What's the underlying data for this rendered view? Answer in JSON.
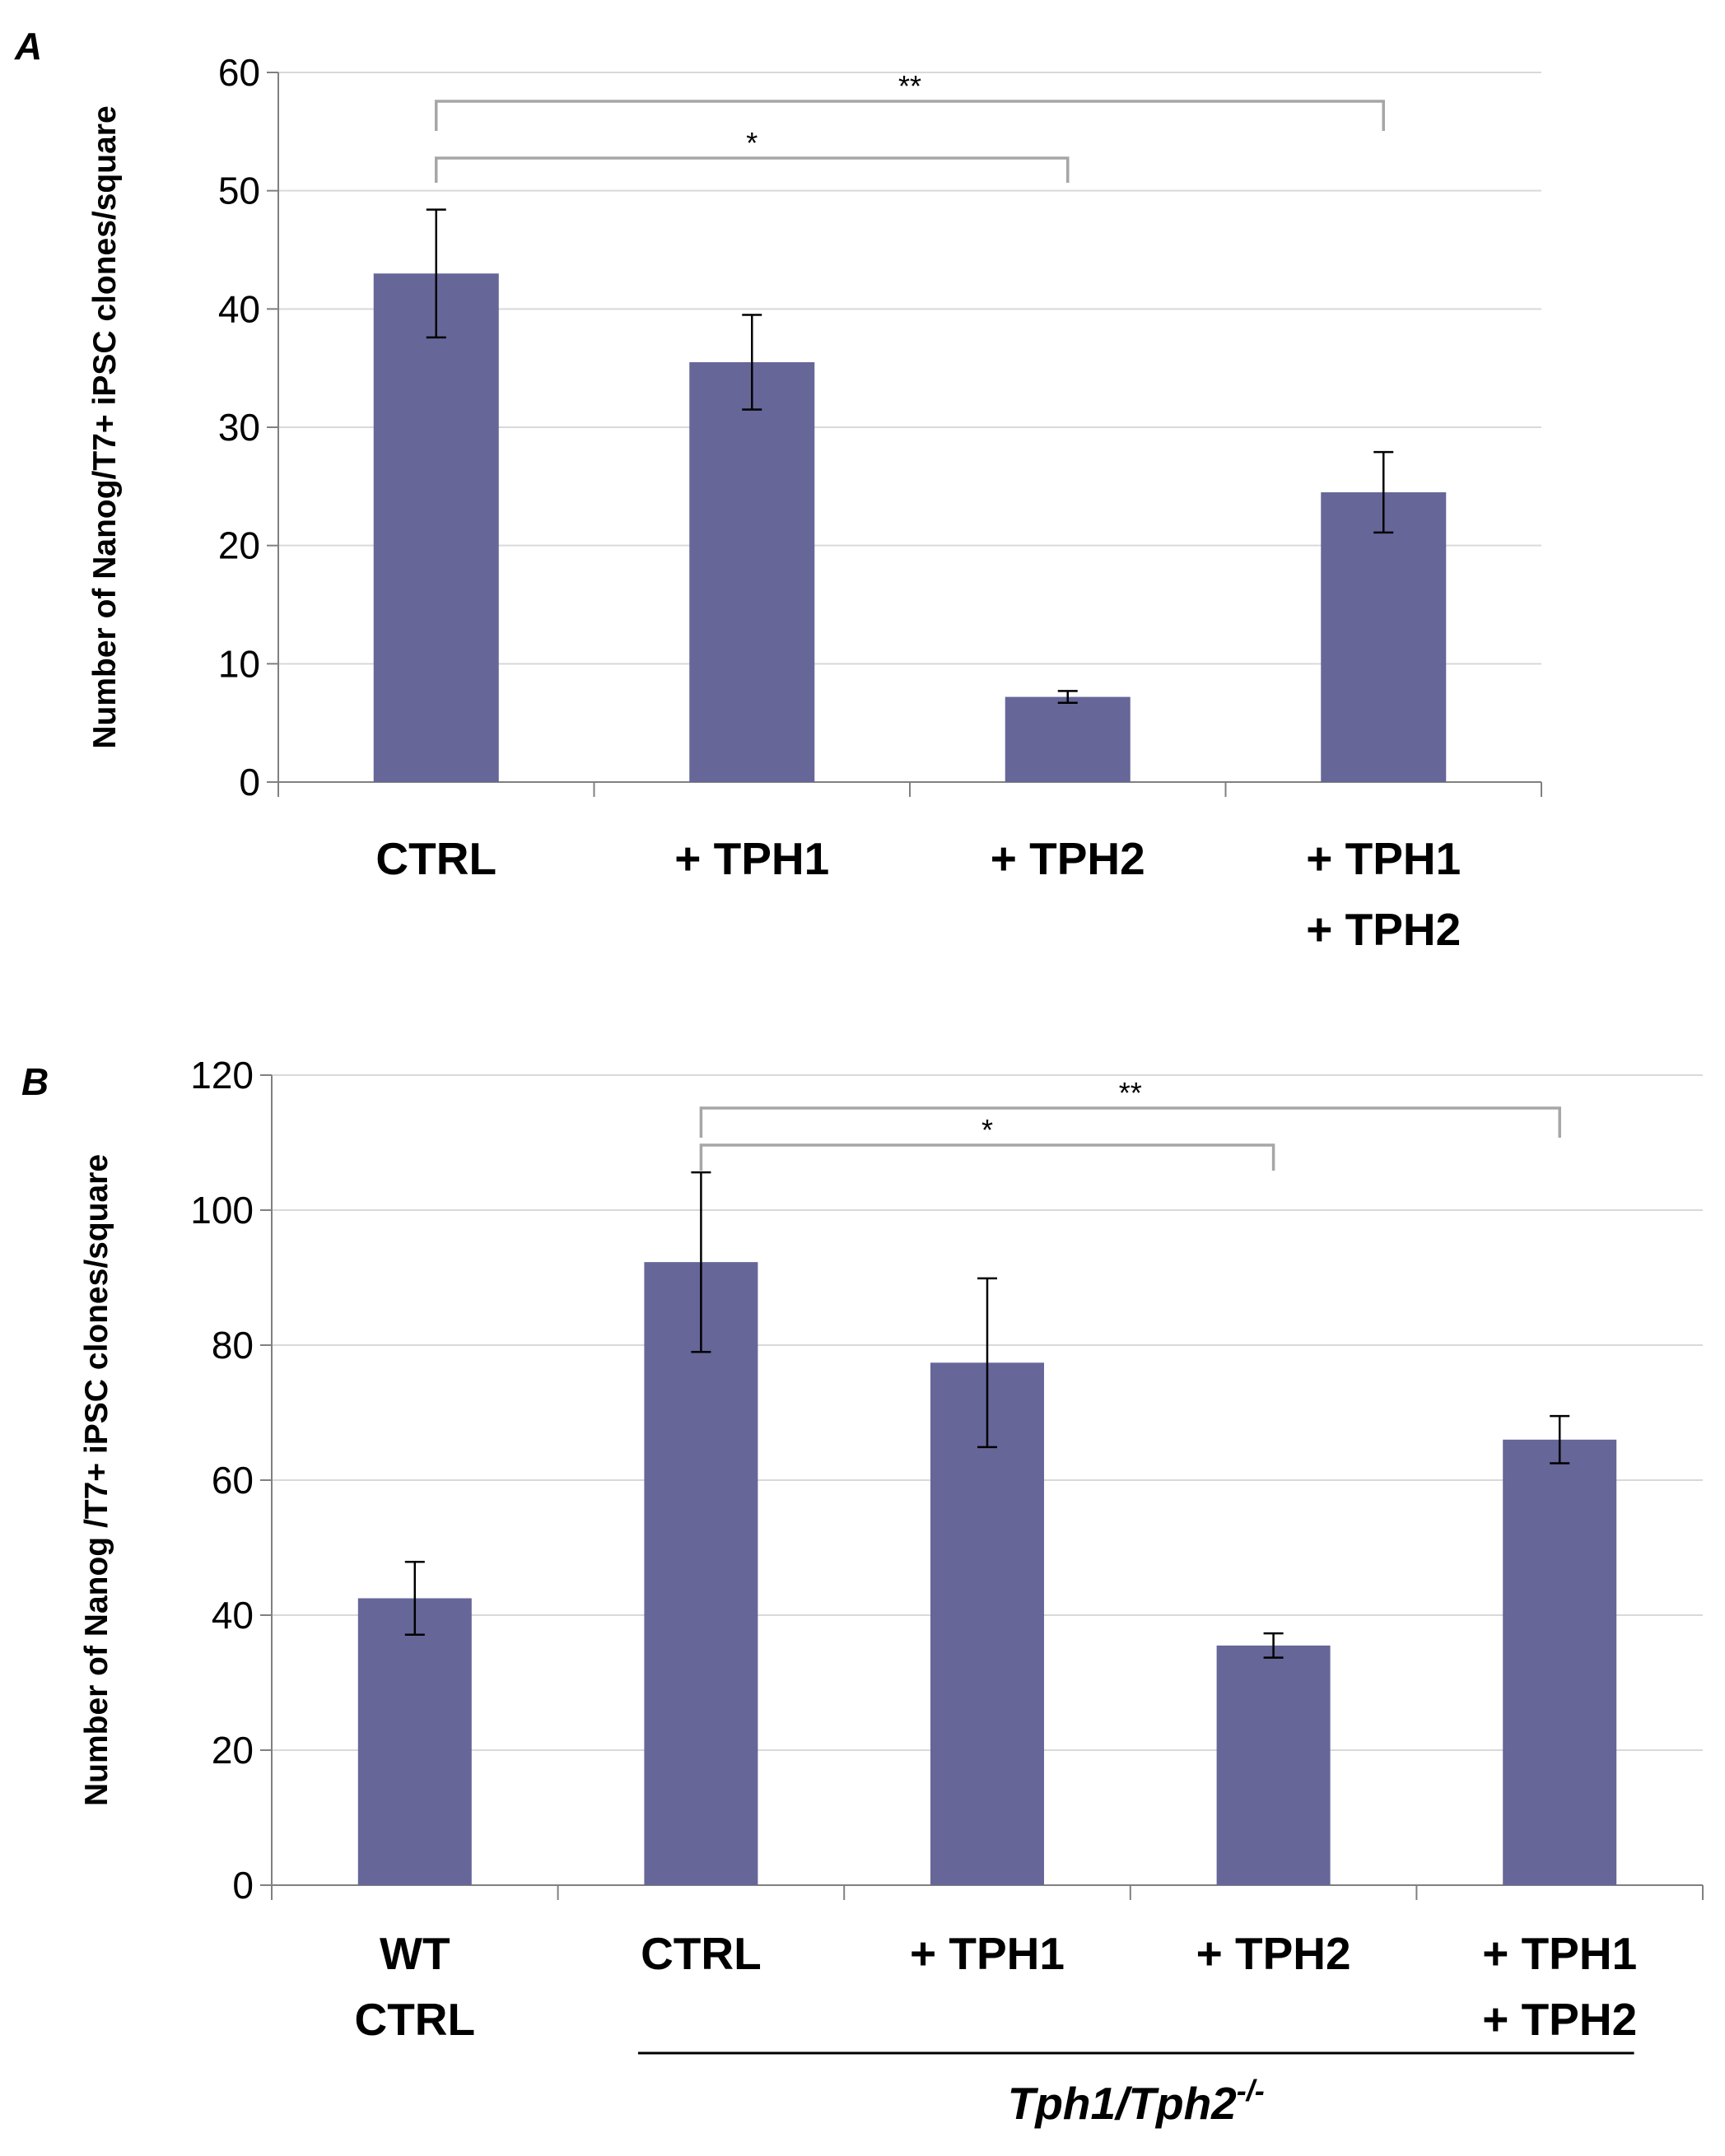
{
  "chart_data": [
    {
      "panel": "A",
      "type": "bar",
      "ylabel": "Number of  Nanog/T7+ iPSC clones/square",
      "ylim": [
        0,
        60
      ],
      "yticks": [
        0,
        10,
        20,
        30,
        40,
        50,
        60
      ],
      "grid": true,
      "categories": [
        [
          "CTRL"
        ],
        [
          "+ TPH1"
        ],
        [
          "+ TPH2"
        ],
        [
          "+ TPH1",
          "+ TPH2"
        ]
      ],
      "values": [
        43,
        35.5,
        7.2,
        24.5
      ],
      "errors": [
        5.4,
        4.0,
        0.5,
        3.4
      ],
      "bar_color": "#666699",
      "significance": [
        {
          "from": 0,
          "to": 2,
          "label": "*"
        },
        {
          "from": 0,
          "to": 3,
          "label": "**"
        }
      ]
    },
    {
      "panel": "B",
      "type": "bar",
      "ylabel": "Number of Nanog /T7+ iPSC clones/square",
      "ylim": [
        0,
        120
      ],
      "yticks": [
        0,
        20,
        40,
        60,
        80,
        100,
        120
      ],
      "grid": true,
      "categories": [
        [
          "WT",
          "CTRL"
        ],
        [
          "CTRL"
        ],
        [
          "+ TPH1"
        ],
        [
          "+ TPH2"
        ],
        [
          "+ TPH1",
          "+ TPH2"
        ]
      ],
      "values": [
        42.5,
        92.3,
        77.4,
        35.5,
        66
      ],
      "errors": [
        5.4,
        13.3,
        12.5,
        1.8,
        3.5
      ],
      "bar_color": "#666699",
      "significance": [
        {
          "from": 1,
          "to": 3,
          "label": "*"
        },
        {
          "from": 1,
          "to": 4,
          "label": "**"
        }
      ],
      "group": {
        "from": 1,
        "to": 4,
        "base": "Tph1/Tph2",
        "sup": "-/-"
      }
    }
  ]
}
